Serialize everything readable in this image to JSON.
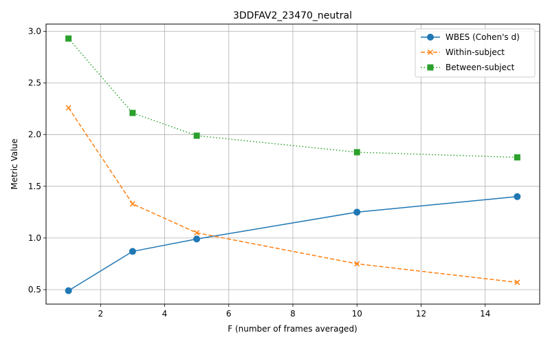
{
  "chart_data": {
    "type": "line",
    "title": "3DDFAV2_23470_neutral",
    "xlabel": "F (number of frames averaged)",
    "ylabel": "Metric Value",
    "x": [
      1,
      3,
      5,
      10,
      15
    ],
    "xlim": [
      0.3,
      15.7
    ],
    "ylim": [
      0.36,
      3.07
    ],
    "xticks": [
      2,
      4,
      6,
      8,
      10,
      12,
      14
    ],
    "yticks": [
      0.5,
      1.0,
      1.5,
      2.0,
      2.5,
      3.0
    ],
    "ytick_labels": [
      "0.5",
      "1.0",
      "1.5",
      "2.0",
      "2.5",
      "3.0"
    ],
    "grid": true,
    "legend_position": "top-right",
    "series": [
      {
        "name": "WBES (Cohen's d)",
        "values": [
          0.49,
          0.87,
          0.99,
          1.25,
          1.4
        ],
        "color": "#1f77b4",
        "linestyle": "solid",
        "marker": "circle"
      },
      {
        "name": "Within-subject",
        "values": [
          2.26,
          1.33,
          1.05,
          0.75,
          0.57
        ],
        "color": "#ff7f0e",
        "linestyle": "dashed",
        "marker": "x"
      },
      {
        "name": "Between-subject",
        "values": [
          2.93,
          2.21,
          1.99,
          1.83,
          1.78
        ],
        "color": "#2ca02c",
        "linestyle": "dotted",
        "marker": "square"
      }
    ]
  }
}
